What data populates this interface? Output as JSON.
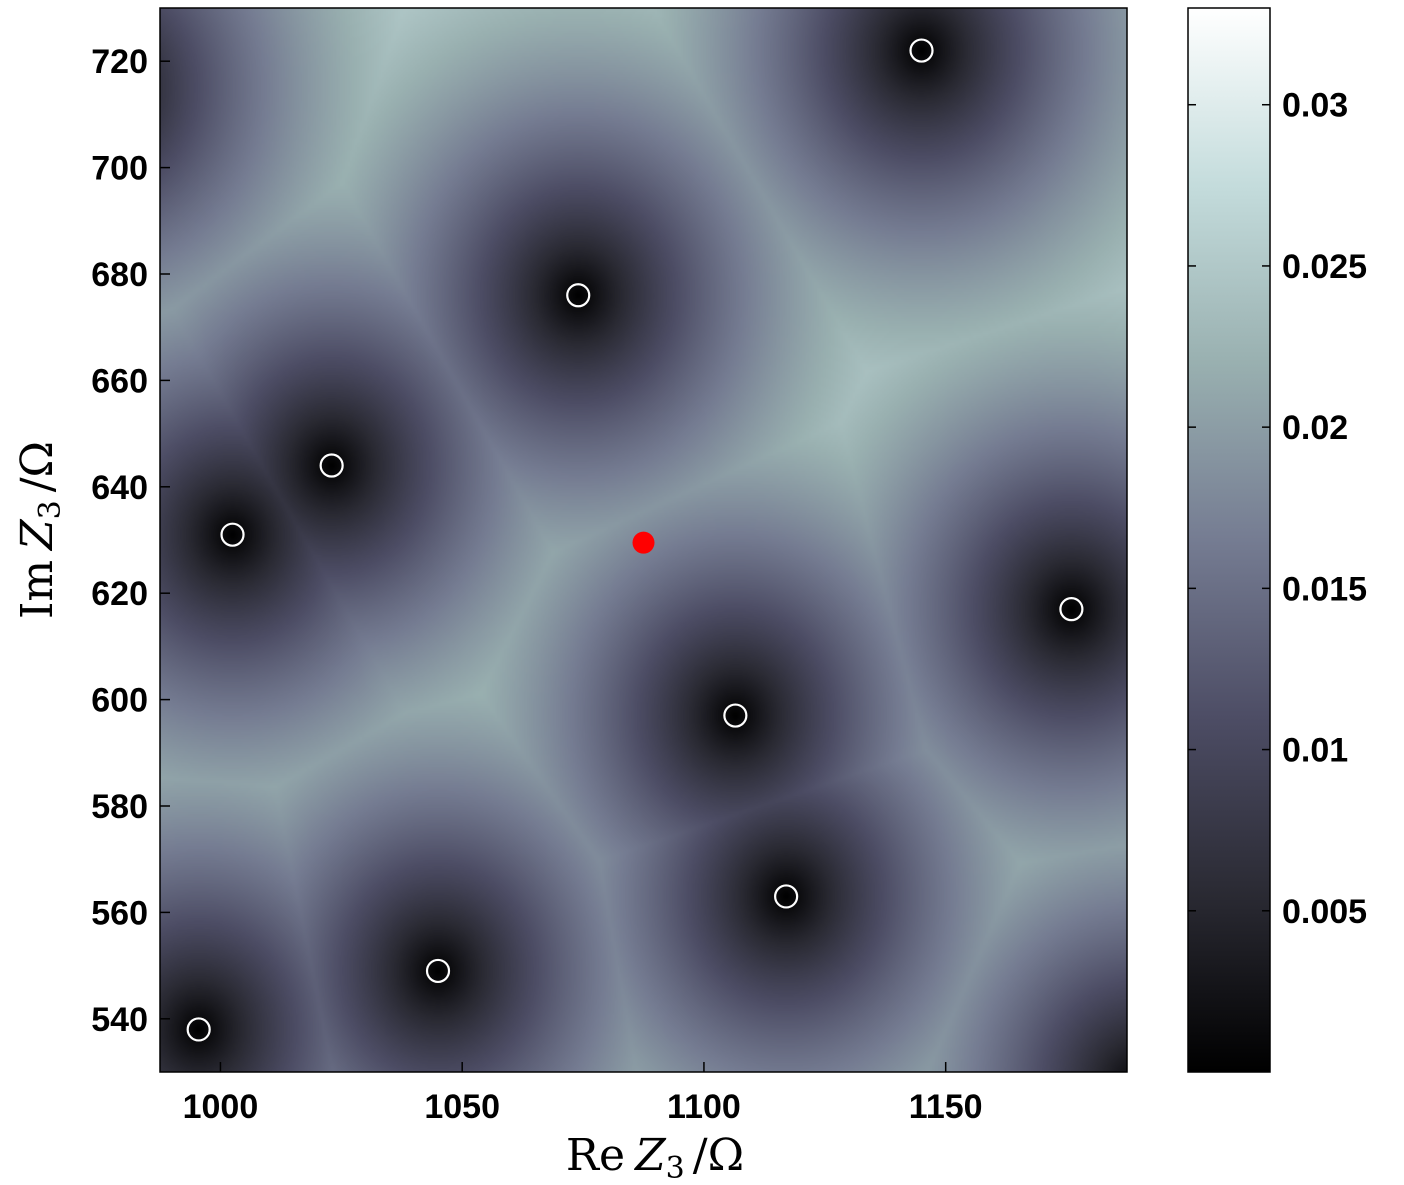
{
  "chart_data": {
    "type": "heatmap",
    "title": "",
    "xlabel": "Re Z3 /Ω",
    "ylabel": "Im Z3 /Ω",
    "xlabel_parts": {
      "op": "Re",
      "var": "Z",
      "sub": "3",
      "unit": "/Ω"
    },
    "ylabel_parts": {
      "op": "Im",
      "var": "Z",
      "sub": "3",
      "unit": "/Ω"
    },
    "xlim": [
      987.5,
      1187.5
    ],
    "ylim": [
      530,
      730
    ],
    "x_ticks": [
      1000,
      1050,
      1100,
      1150
    ],
    "y_ticks": [
      540,
      560,
      580,
      600,
      620,
      640,
      660,
      680,
      700,
      720
    ],
    "x_tick_labels": [
      "1000",
      "1050",
      "1100",
      "1150"
    ],
    "y_tick_labels": [
      "540",
      "560",
      "580",
      "600",
      "620",
      "640",
      "660",
      "680",
      "700",
      "720"
    ],
    "colorbar": {
      "range": [
        0,
        0.033
      ],
      "ticks": [
        0.005,
        0.01,
        0.015,
        0.02,
        0.025,
        0.03
      ],
      "tick_labels": [
        "0.005",
        "0.01",
        "0.015",
        "0.02",
        "0.025",
        "0.03"
      ],
      "colormap": "bone",
      "stops": [
        "#000000",
        "#2a2a33",
        "#4d4d65",
        "#757c92",
        "#99b0b0",
        "#c4dcdc",
        "#ffffff"
      ]
    },
    "field": {
      "decay_scale": 55,
      "floor_gradient": 0.0006
    },
    "minima": [
      {
        "x": 995.5,
        "y": 538
      },
      {
        "x": 1002.5,
        "y": 631
      },
      {
        "x": 1023,
        "y": 644
      },
      {
        "x": 1045,
        "y": 549
      },
      {
        "x": 1074,
        "y": 676
      },
      {
        "x": 1106.5,
        "y": 597
      },
      {
        "x": 1117,
        "y": 563
      },
      {
        "x": 1145,
        "y": 722
      },
      {
        "x": 1176,
        "y": 617
      },
      {
        "x": 1190,
        "y": 527
      },
      {
        "x": 975,
        "y": 715
      }
    ],
    "markers": [
      {
        "x": 995.5,
        "y": 538
      },
      {
        "x": 1002.5,
        "y": 631
      },
      {
        "x": 1023,
        "y": 644
      },
      {
        "x": 1045,
        "y": 549
      },
      {
        "x": 1074,
        "y": 676
      },
      {
        "x": 1106.5,
        "y": 597
      },
      {
        "x": 1117,
        "y": 563
      },
      {
        "x": 1145,
        "y": 722
      },
      {
        "x": 1176,
        "y": 617
      }
    ],
    "marker_style": {
      "stroke": "#ffffff",
      "fill": "none"
    },
    "highlight_point": {
      "x": 1087.5,
      "y": 629.5,
      "color": "#ff0000"
    }
  }
}
